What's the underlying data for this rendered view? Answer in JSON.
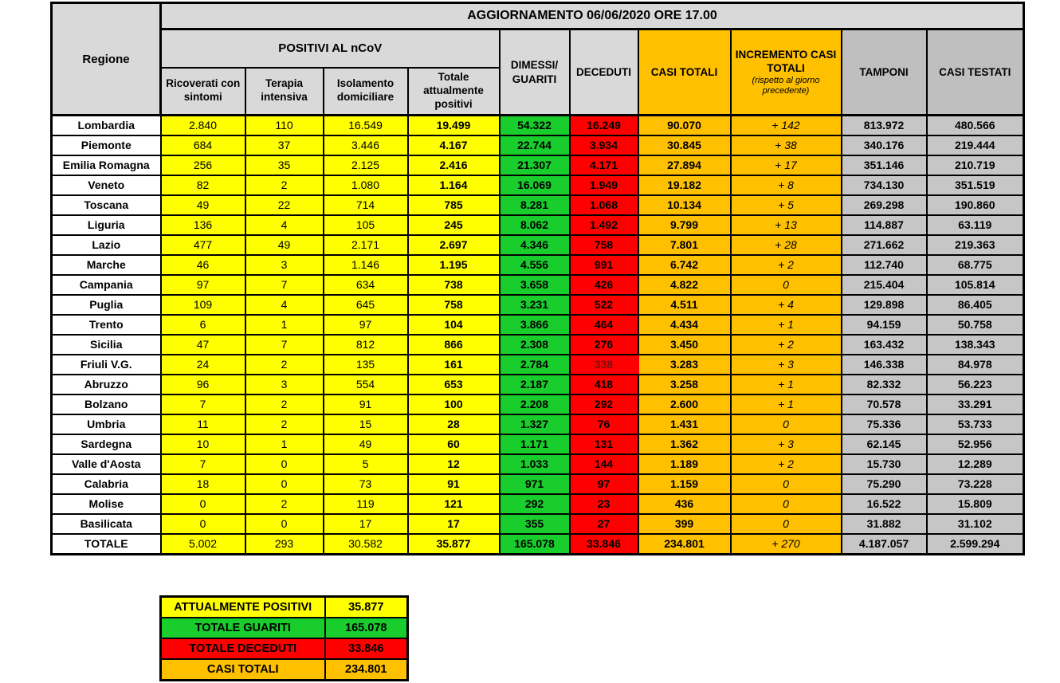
{
  "title": "AGGIORNAMENTO 06/06/2020 ORE 17.00",
  "colors": {
    "positivi_yellow": "#FFFF00",
    "guariti_green": "#19CD2D",
    "deceduti_red": "#FF0000",
    "casi_totali_orange": "#FFC000",
    "header_gray": "#D9D9D9",
    "tamponi_gray": "#BFBFBF"
  },
  "table": {
    "header": {
      "regione": "Regione",
      "positivi_group": "POSITIVI AL nCoV",
      "sub_1": "Ricoverati con sintomi",
      "sub_2": "Terapia intensiva",
      "sub_3": "Isolamento domiciliare",
      "sub_4": "Totale attualmente positivi",
      "dimessi": "DIMESSI/ GUARITI",
      "deceduti": "DECEDUTI",
      "casi_totali": "CASI TOTALI",
      "incremento": "INCREMENTO CASI TOTALI",
      "incremento_note": "(rispetto al giorno precedente)",
      "tamponi": "TAMPONI",
      "casi_testati": "CASI TESTATI"
    },
    "rows": [
      {
        "region": "Lombardia",
        "values": [
          "2.840",
          "110",
          "16.549",
          "19.499",
          "54.322",
          "16.249",
          "90.070",
          "+ 142",
          "813.972",
          "480.566"
        ]
      },
      {
        "region": "Piemonte",
        "values": [
          "684",
          "37",
          "3.446",
          "4.167",
          "22.744",
          "3.934",
          "30.845",
          "+ 38",
          "340.176",
          "219.444"
        ]
      },
      {
        "region": "Emilia Romagna",
        "values": [
          "256",
          "35",
          "2.125",
          "2.416",
          "21.307",
          "4.171",
          "27.894",
          "+ 17",
          "351.146",
          "210.719"
        ]
      },
      {
        "region": "Veneto",
        "values": [
          "82",
          "2",
          "1.080",
          "1.164",
          "16.069",
          "1.949",
          "19.182",
          "+ 8",
          "734.130",
          "351.519"
        ]
      },
      {
        "region": "Toscana",
        "values": [
          "49",
          "22",
          "714",
          "785",
          "8.281",
          "1.068",
          "10.134",
          "+ 5",
          "269.298",
          "190.860"
        ]
      },
      {
        "region": "Liguria",
        "values": [
          "136",
          "4",
          "105",
          "245",
          "8.062",
          "1.492",
          "9.799",
          "+ 13",
          "114.887",
          "63.119"
        ]
      },
      {
        "region": "Lazio",
        "values": [
          "477",
          "49",
          "2.171",
          "2.697",
          "4.346",
          "758",
          "7.801",
          "+ 28",
          "271.662",
          "219.363"
        ]
      },
      {
        "region": "Marche",
        "values": [
          "46",
          "3",
          "1.146",
          "1.195",
          "4.556",
          "991",
          "6.742",
          "+ 2",
          "112.740",
          "68.775"
        ]
      },
      {
        "region": "Campania",
        "values": [
          "97",
          "7",
          "634",
          "738",
          "3.658",
          "426",
          "4.822",
          "0",
          "215.404",
          "105.814"
        ]
      },
      {
        "region": "Puglia",
        "values": [
          "109",
          "4",
          "645",
          "758",
          "3.231",
          "522",
          "4.511",
          "+ 4",
          "129.898",
          "86.405"
        ]
      },
      {
        "region": "Trento",
        "values": [
          "6",
          "1",
          "97",
          "104",
          "3.866",
          "464",
          "4.434",
          "+ 1",
          "94.159",
          "50.758"
        ]
      },
      {
        "region": "Sicilia",
        "values": [
          "47",
          "7",
          "812",
          "866",
          "2.308",
          "276",
          "3.450",
          "+ 2",
          "163.432",
          "138.343"
        ]
      },
      {
        "region": "Friuli V.G.",
        "values": [
          "24",
          "2",
          "135",
          "161",
          "2.784",
          "338",
          "3.283",
          "+ 3",
          "146.338",
          "84.978"
        ],
        "border_anomaly": true
      },
      {
        "region": "Abruzzo",
        "values": [
          "96",
          "3",
          "554",
          "653",
          "2.187",
          "418",
          "3.258",
          "+ 1",
          "82.332",
          "56.223"
        ]
      },
      {
        "region": "Bolzano",
        "values": [
          "7",
          "2",
          "91",
          "100",
          "2.208",
          "292",
          "2.600",
          "+ 1",
          "70.578",
          "33.291"
        ]
      },
      {
        "region": "Umbria",
        "values": [
          "11",
          "2",
          "15",
          "28",
          "1.327",
          "76",
          "1.431",
          "0",
          "75.336",
          "53.733"
        ]
      },
      {
        "region": "Sardegna",
        "values": [
          "10",
          "1",
          "49",
          "60",
          "1.171",
          "131",
          "1.362",
          "+ 3",
          "62.145",
          "52.956"
        ]
      },
      {
        "region": "Valle d'Aosta",
        "values": [
          "7",
          "0",
          "5",
          "12",
          "1.033",
          "144",
          "1.189",
          "+ 2",
          "15.730",
          "12.289"
        ]
      },
      {
        "region": "Calabria",
        "values": [
          "18",
          "0",
          "73",
          "91",
          "971",
          "97",
          "1.159",
          "0",
          "75.290",
          "73.228"
        ]
      },
      {
        "region": "Molise",
        "values": [
          "0",
          "2",
          "119",
          "121",
          "292",
          "23",
          "436",
          "0",
          "16.522",
          "15.809"
        ]
      },
      {
        "region": "Basilicata",
        "values": [
          "0",
          "0",
          "17",
          "17",
          "355",
          "27",
          "399",
          "0",
          "31.882",
          "31.102"
        ]
      }
    ],
    "total_row": {
      "region": "TOTALE",
      "values": [
        "5.002",
        "293",
        "30.582",
        "35.877",
        "165.078",
        "33.846",
        "234.801",
        "+ 270",
        "4.187.057",
        "2.599.294"
      ]
    }
  },
  "summary": {
    "rows": [
      {
        "label": "ATTUALMENTE POSITIVI",
        "value": "35.877",
        "color": "yellow"
      },
      {
        "label": "TOTALE GUARITI",
        "value": "165.078",
        "color": "green"
      },
      {
        "label": "TOTALE DECEDUTI",
        "value": "33.846",
        "color": "red"
      },
      {
        "label": "CASI TOTALI",
        "value": "234.801",
        "color": "orange"
      }
    ]
  }
}
